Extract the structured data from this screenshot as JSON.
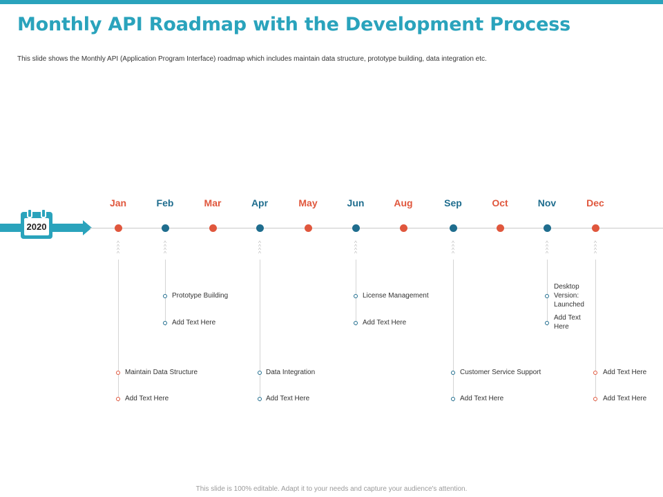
{
  "title": "Monthly API Roadmap with the Development Process",
  "subtitle": "This slide shows the Monthly API (Application Program Interface) roadmap which includes maintain data structure, prototype building, data integration etc.",
  "footer": "This slide is 100% editable. Adapt it to your needs and capture your audience's attention.",
  "year": "2020",
  "colors": {
    "accent": "#2aa3bc",
    "orange": "#e0573d",
    "blue": "#1f6d8e"
  },
  "months": [
    {
      "name": "Jan",
      "color": "orange"
    },
    {
      "name": "Feb",
      "color": "blue"
    },
    {
      "name": "Mar",
      "color": "orange"
    },
    {
      "name": "Apr",
      "color": "blue"
    },
    {
      "name": "May",
      "color": "orange"
    },
    {
      "name": "Jun",
      "color": "blue"
    },
    {
      "name": "Aug",
      "color": "orange"
    },
    {
      "name": "Sep",
      "color": "blue"
    },
    {
      "name": "Oct",
      "color": "orange"
    },
    {
      "name": "Nov",
      "color": "blue"
    },
    {
      "name": "Dec",
      "color": "orange"
    }
  ],
  "milestones": {
    "jan": [
      "Maintain Data Structure",
      "Add Text Here"
    ],
    "feb": [
      "Prototype Building",
      "Add Text Here"
    ],
    "apr": [
      "Data Integration",
      "Add Text Here"
    ],
    "jun": [
      "License Management",
      "Add Text Here"
    ],
    "sep": [
      "Customer Service Support",
      "Add Text Here"
    ],
    "nov": [
      "Desktop Version: Launched",
      "Add Text Here"
    ],
    "dec": [
      "Add Text Here",
      "Add Text Here"
    ]
  }
}
